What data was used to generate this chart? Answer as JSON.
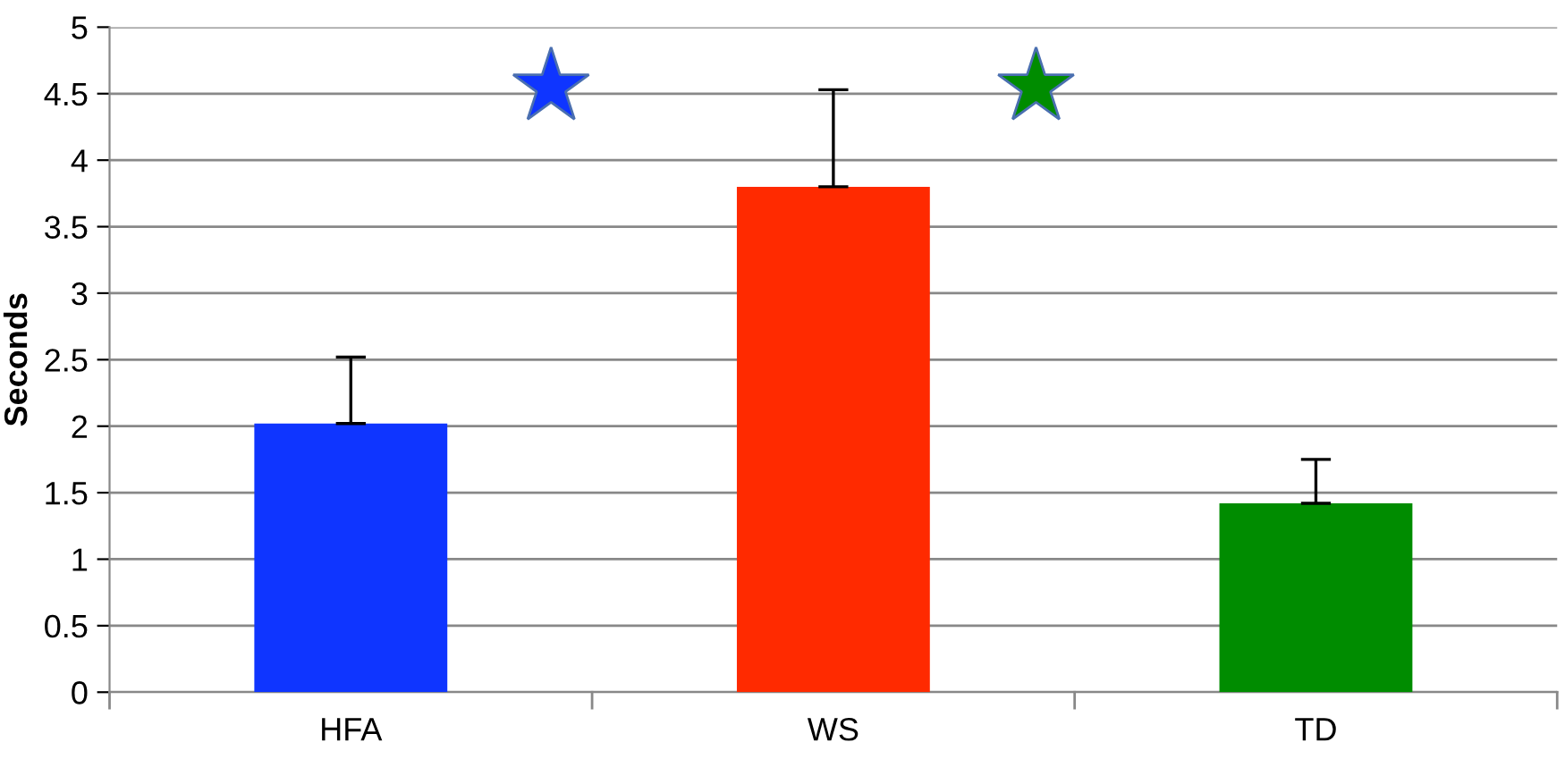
{
  "chart_data": {
    "type": "bar",
    "ylabel": "Seconds",
    "categories": [
      "HFA",
      "WS",
      "TD"
    ],
    "values": [
      2.02,
      3.8,
      1.42
    ],
    "colors": [
      "#0f35ff",
      "#ff2a00",
      "#008c00"
    ],
    "errors": [
      [
        2.02,
        2.52
      ],
      [
        3.8,
        4.53
      ],
      [
        1.42,
        1.75
      ]
    ],
    "ylim": [
      0,
      5
    ],
    "yticks": [
      0,
      {
        "value": 0.5,
        "label": "0.5"
      },
      1,
      {
        "value": 1.5,
        "label": "1.5"
      },
      2,
      {
        "value": 2.5,
        "label": "2.5"
      },
      3,
      {
        "value": 3.5,
        "label": "3.5"
      },
      4,
      {
        "value": 4.5,
        "label": "4.5"
      },
      5
    ],
    "grid": "y",
    "legend": false
  }
}
